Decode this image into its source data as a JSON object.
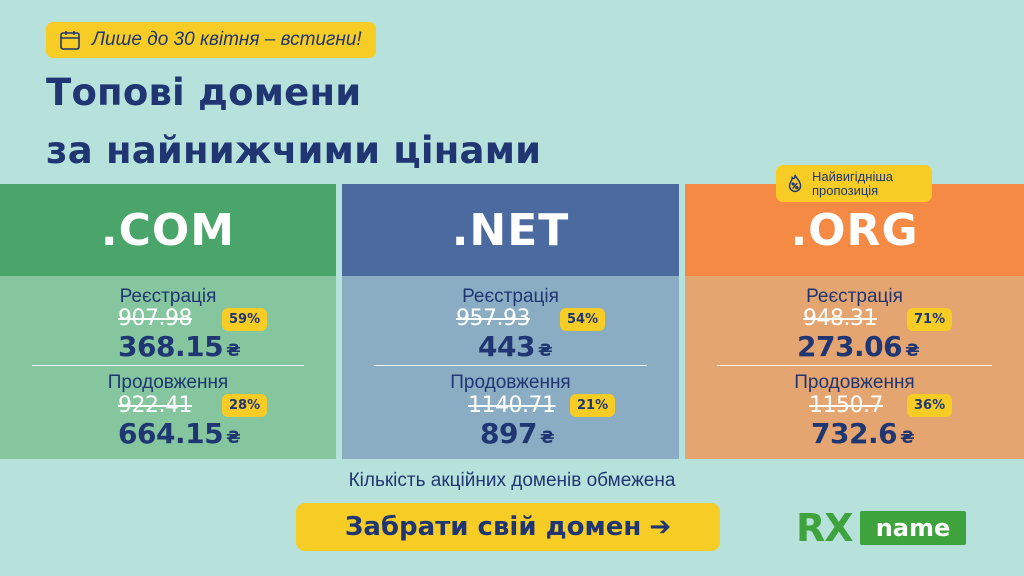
{
  "promo": {
    "text": "Лише до 30 квітня – встигни!",
    "icon": "calendar-icon"
  },
  "headline": {
    "line1": "Топові домени",
    "line2": "за найнижчими цінами"
  },
  "best_offer": {
    "line1": "Найвигідніша",
    "line2": "пропозиція",
    "icon": "fire-percent-icon"
  },
  "cards": [
    {
      "tld": ".COM",
      "registration": {
        "label": "Реєстрація",
        "old_price": "907.98",
        "discount": "59%",
        "new_price": "368.15"
      },
      "renewal": {
        "label": "Продовження",
        "old_price": "922.41",
        "discount": "28%",
        "new_price": "664.15"
      }
    },
    {
      "tld": ".NET",
      "registration": {
        "label": "Реєстрація",
        "old_price": "957.93",
        "discount": "54%",
        "new_price": "443"
      },
      "renewal": {
        "label": "Продовження",
        "old_price": "1140.71",
        "discount": "21%",
        "new_price": "897"
      }
    },
    {
      "tld": ".ORG",
      "registration": {
        "label": "Реєстрація",
        "old_price": "948.31",
        "discount": "71%",
        "new_price": "273.06"
      },
      "renewal": {
        "label": "Продовження",
        "old_price": "1150.7",
        "discount": "36%",
        "new_price": "732.6"
      }
    }
  ],
  "currency": "₴",
  "limit_text": "Кількість акційних доменів обмежена",
  "cta": {
    "label": "Забрати свій домен",
    "arrow": "➔"
  },
  "logo": {
    "rx": "RX",
    "name": "name"
  },
  "colors": {
    "background": "#b7e2dc",
    "accent_yellow": "#f7cd25",
    "text_navy": "#1f3673",
    "com": "#4aa56a",
    "net": "#4b6aa0",
    "org": "#f58a45"
  }
}
